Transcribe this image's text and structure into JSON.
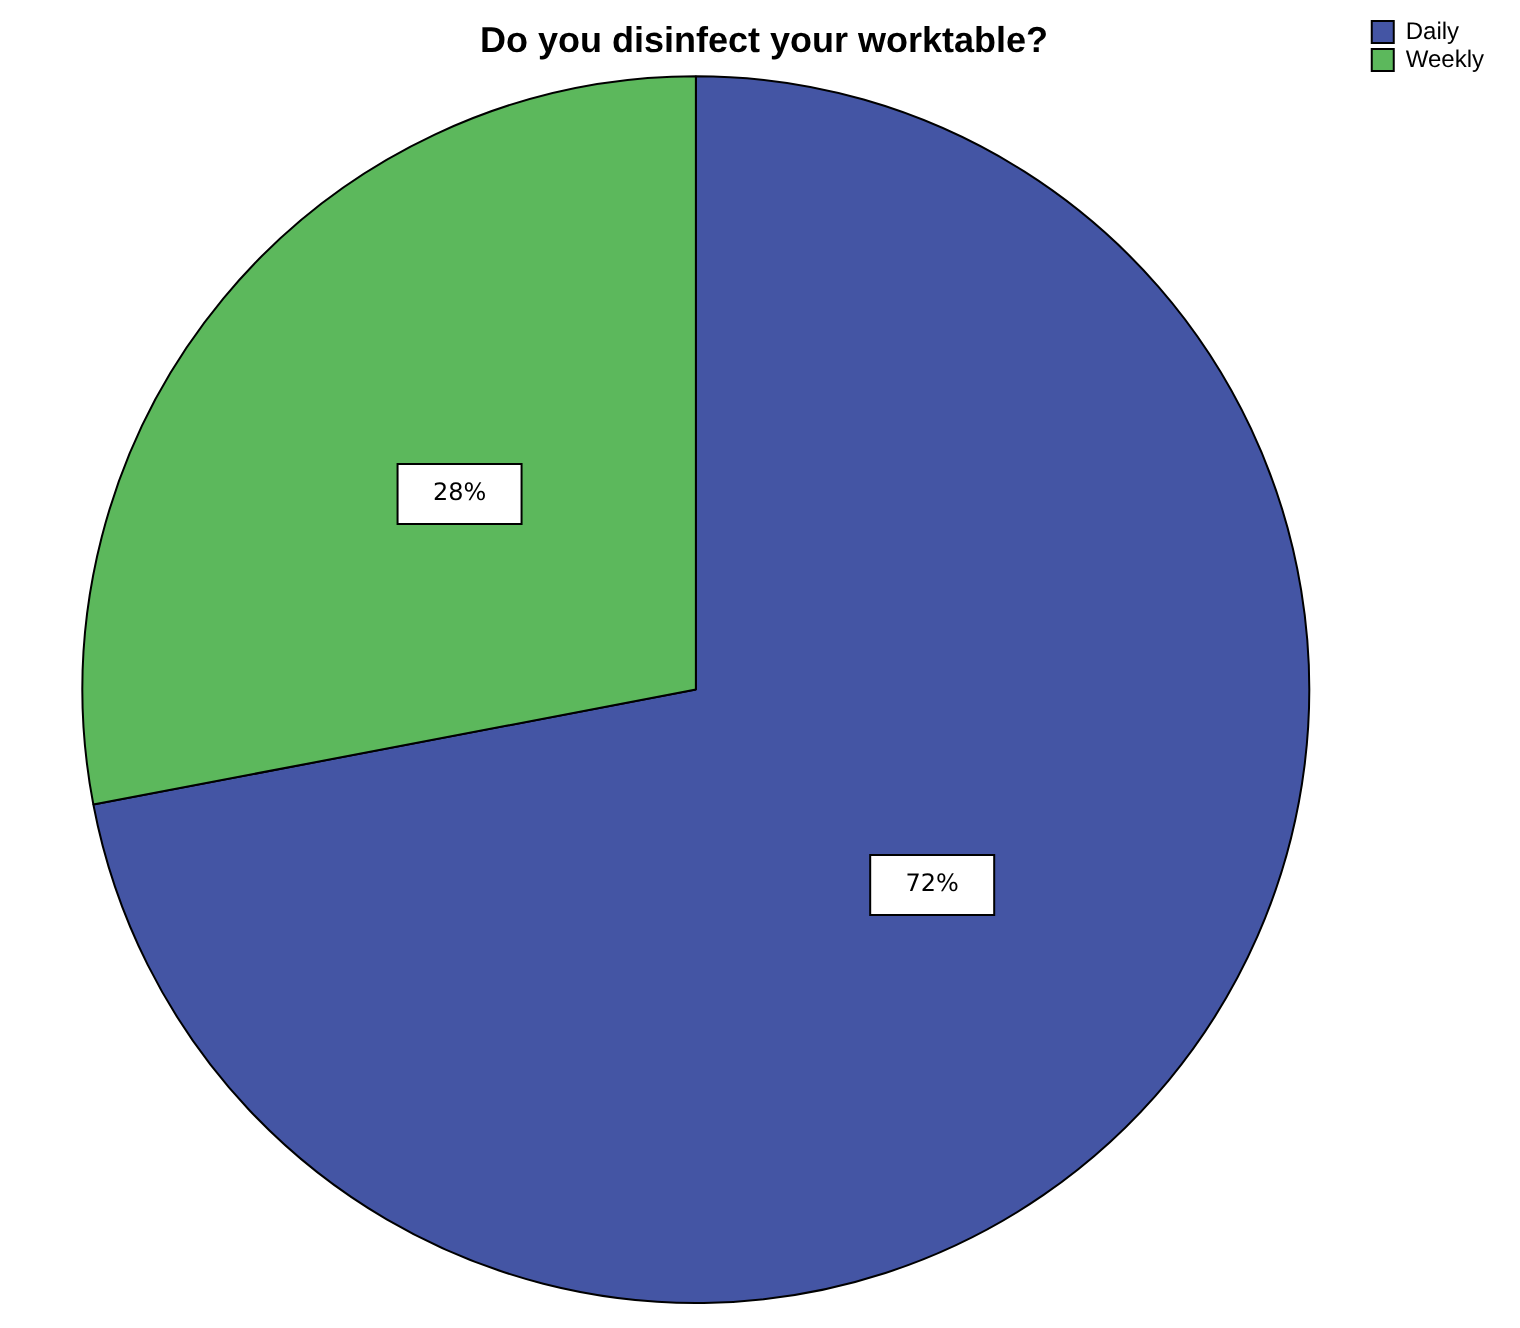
{
  "chart_data": {
    "type": "pie",
    "title": "Do you disinfect your worktable?",
    "categories": [
      "Daily",
      "Weekly"
    ],
    "values": [
      72,
      28
    ],
    "colors": [
      "#4455a4",
      "#5cb85c"
    ],
    "value_labels": [
      "72%",
      "28%"
    ],
    "legend": "top right"
  }
}
